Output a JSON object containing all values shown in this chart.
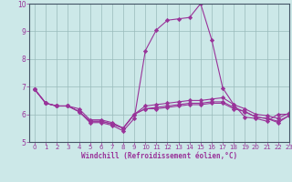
{
  "background_color": "#cce8e8",
  "line_color": "#993399",
  "grid_color": "#99bbbb",
  "xlabel": "Windchill (Refroidissement éolien,°C)",
  "xlim": [
    -0.5,
    23
  ],
  "ylim": [
    5,
    10
  ],
  "xticks": [
    0,
    1,
    2,
    3,
    4,
    5,
    6,
    7,
    8,
    9,
    10,
    11,
    12,
    13,
    14,
    15,
    16,
    17,
    18,
    19,
    20,
    21,
    22,
    23
  ],
  "yticks": [
    5,
    6,
    7,
    8,
    9,
    10
  ],
  "line1_x": [
    0,
    1,
    2,
    3,
    4,
    5,
    6,
    7,
    8,
    9,
    10,
    11,
    12,
    13,
    14,
    15,
    16,
    17,
    18,
    19,
    20,
    21,
    22,
    23
  ],
  "line1_y": [
    6.9,
    6.4,
    6.3,
    6.3,
    6.1,
    5.7,
    5.7,
    5.6,
    5.4,
    5.85,
    8.3,
    9.05,
    9.4,
    9.45,
    9.5,
    10.0,
    8.7,
    6.95,
    6.35,
    5.9,
    5.85,
    5.75,
    6.0,
    6.0
  ],
  "line2_x": [
    0,
    1,
    2,
    3,
    4,
    5,
    6,
    7,
    8,
    9,
    10,
    11,
    12,
    13,
    14,
    15,
    16,
    17,
    18,
    19,
    20,
    21,
    22,
    23
  ],
  "line2_y": [
    6.9,
    6.4,
    6.3,
    6.3,
    6.1,
    5.75,
    5.75,
    5.65,
    5.5,
    6.0,
    6.3,
    6.35,
    6.4,
    6.45,
    6.5,
    6.5,
    6.55,
    6.6,
    6.35,
    6.2,
    6.0,
    5.95,
    5.85,
    6.05
  ],
  "line3_x": [
    0,
    1,
    2,
    3,
    4,
    5,
    6,
    7,
    8,
    9,
    10,
    11,
    12,
    13,
    14,
    15,
    16,
    17,
    18,
    19,
    20,
    21,
    22,
    23
  ],
  "line3_y": [
    6.9,
    6.4,
    6.3,
    6.3,
    6.1,
    5.75,
    5.75,
    5.65,
    5.5,
    6.0,
    6.2,
    6.25,
    6.3,
    6.35,
    6.4,
    6.4,
    6.45,
    6.45,
    6.25,
    6.1,
    5.9,
    5.85,
    5.75,
    5.95
  ],
  "line4_x": [
    0,
    1,
    2,
    3,
    4,
    5,
    6,
    7,
    8,
    9,
    10,
    11,
    12,
    13,
    14,
    15,
    16,
    17,
    18,
    19,
    20,
    21,
    22,
    23
  ],
  "line4_y": [
    6.9,
    6.4,
    6.3,
    6.3,
    6.2,
    5.8,
    5.8,
    5.7,
    5.5,
    6.0,
    6.2,
    6.2,
    6.25,
    6.3,
    6.35,
    6.35,
    6.4,
    6.4,
    6.2,
    6.1,
    5.9,
    5.85,
    5.7,
    5.95
  ],
  "marker": "D",
  "markersize": 2.2,
  "linewidth": 0.8,
  "tick_fontsize": 5.0,
  "xlabel_fontsize": 5.5
}
